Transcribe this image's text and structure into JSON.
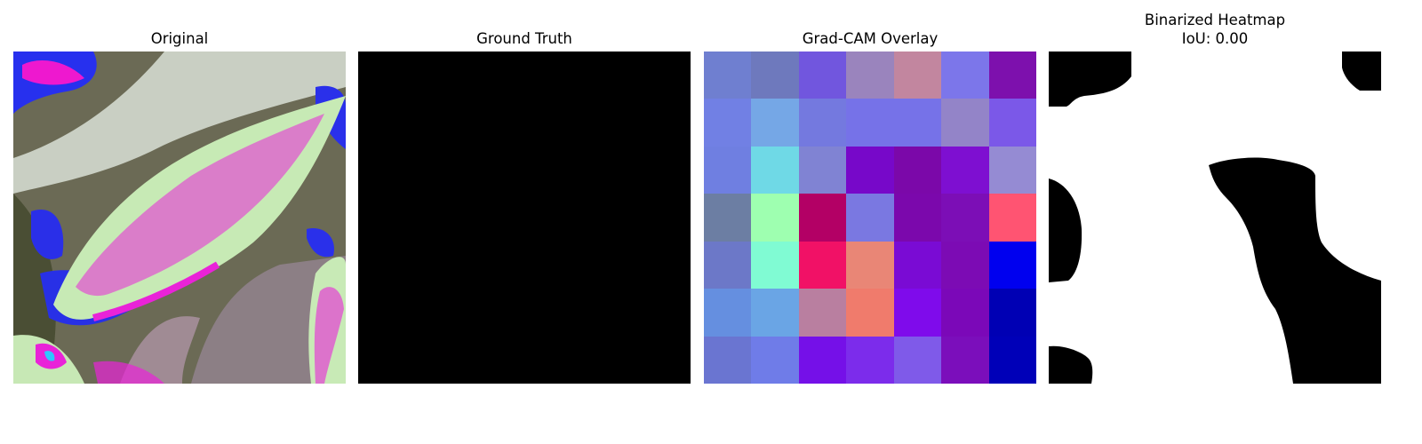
{
  "panels": {
    "original": {
      "title": "Original"
    },
    "ground_truth": {
      "title": "Ground Truth"
    },
    "overlay": {
      "title": "Grad-CAM Overlay",
      "grid_colors": [
        [
          "#6f7fd0",
          "#6e79bd",
          "#7156de",
          "#9a84bd",
          "#c2869f",
          "#7c76ea",
          "#7d10ad"
        ],
        [
          "#7180e4",
          "#75a7e6",
          "#7479df",
          "#7672e8",
          "#7672e8",
          "#9384c8",
          "#7b58e8"
        ],
        [
          "#6f7fe1",
          "#6fd9e6",
          "#8083d3",
          "#7708c9",
          "#7b08a9",
          "#7e0fd1",
          "#958bd3"
        ],
        [
          "#6c7ea3",
          "#9effb0",
          "#b30065",
          "#7a78e1",
          "#7b08ac",
          "#7c0eb6",
          "#ff5472"
        ],
        [
          "#6c78c8",
          "#80fbd3",
          "#f11166",
          "#e98676",
          "#7a0bd4",
          "#7c0bb4",
          "#0000ef"
        ],
        [
          "#658fe0",
          "#6aa5e5",
          "#b97fa0",
          "#f07b6c",
          "#7f0beb",
          "#7b08b8",
          "#0000b4"
        ],
        [
          "#6a75d1",
          "#6f7ce8",
          "#7510e8",
          "#7c2ceb",
          "#7f5ae9",
          "#7b0ebb",
          "#0000b8"
        ]
      ]
    },
    "binarized": {
      "title": "Binarized Heatmap",
      "subtitle": "IoU: 0.00"
    }
  }
}
